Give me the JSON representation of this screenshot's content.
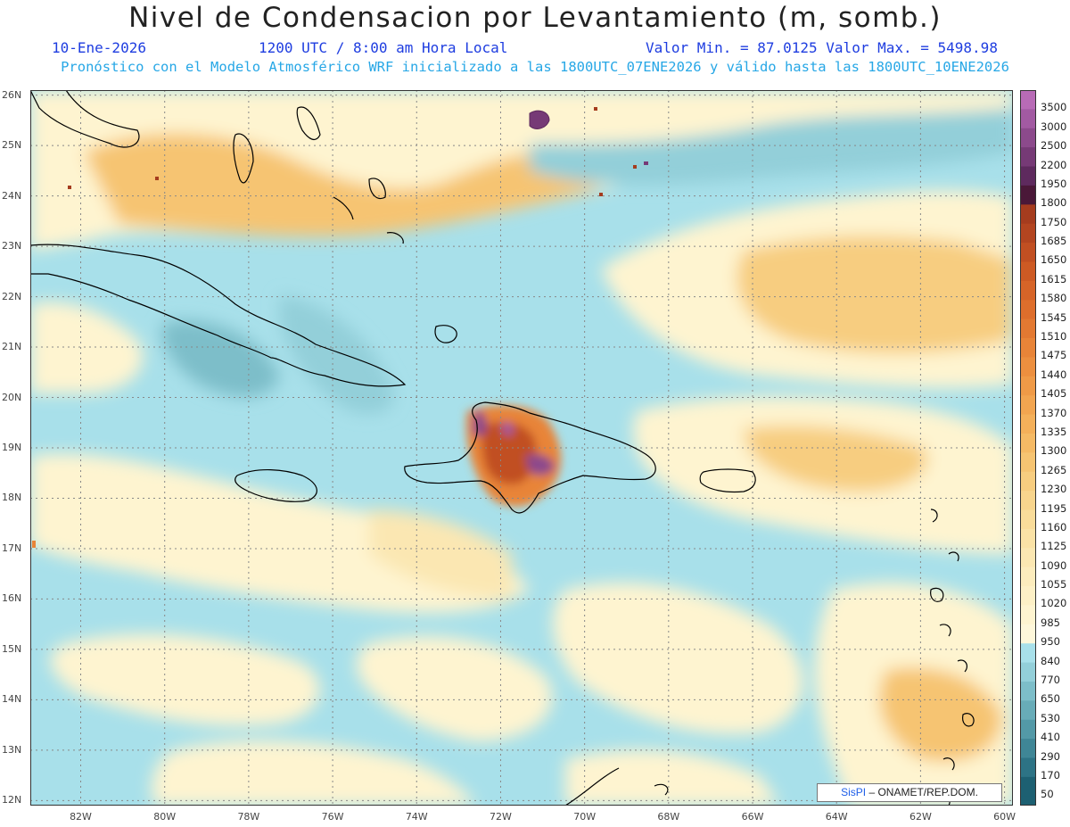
{
  "header": {
    "title": "Nivel de Condensacion por Levantamiento (m, somb.)",
    "date": "10-Ene-2026",
    "time": "1200 UTC / 8:00 am Hora Local",
    "minmax": "Valor Min. = 87.0125  Valor Max. = 5498.98",
    "forecast_note": "Pronóstico con el Modelo Atmosférico WRF inicializado a las 1800UTC_07ENE2026 y válido hasta las  1800UTC_10ENE2026"
  },
  "map": {
    "lat_labels": [
      "26N",
      "25N",
      "24N",
      "23N",
      "22N",
      "21N",
      "20N",
      "19N",
      "18N",
      "17N",
      "16N",
      "15N",
      "14N",
      "13N",
      "12N"
    ],
    "lon_labels": [
      "82W",
      "80W",
      "78W",
      "76W",
      "74W",
      "72W",
      "70W",
      "68W",
      "66W",
      "64W",
      "62W",
      "60W"
    ],
    "lat_values": [
      26,
      25,
      24,
      23,
      22,
      21,
      20,
      19,
      18,
      17,
      16,
      15,
      14,
      13,
      12
    ],
    "lon_values": [
      -82,
      -80,
      -78,
      -76,
      -74,
      -72,
      -70,
      -68,
      -66,
      -64,
      -62,
      -60
    ],
    "lon_range": [
      -83.2,
      -59.8
    ],
    "lat_range": [
      11.9,
      26.1
    ],
    "coastline_color": "#000000",
    "grid_color": "#888888"
  },
  "colorbar": {
    "levels": [
      "3500",
      "3000",
      "2500",
      "2200",
      "1950",
      "1800",
      "1750",
      "1685",
      "1650",
      "1615",
      "1580",
      "1545",
      "1510",
      "1475",
      "1440",
      "1405",
      "1370",
      "1335",
      "1300",
      "1265",
      "1230",
      "1195",
      "1160",
      "1125",
      "1090",
      "1055",
      "1020",
      "985",
      "950",
      "840",
      "770",
      "650",
      "530",
      "410",
      "290",
      "170",
      "50"
    ],
    "colors": [
      "#b86bb6",
      "#a25aa2",
      "#8c4a8c",
      "#763a76",
      "#5e2a5e",
      "#4a1838",
      "#a53c1e",
      "#b34520",
      "#c14f22",
      "#cd5a24",
      "#d66428",
      "#de6e2c",
      "#e37932",
      "#e88438",
      "#ec8f3f",
      "#ef9a47",
      "#f2a550",
      "#f4b05a",
      "#f5ba65",
      "#f6c472",
      "#f7cd80",
      "#f8d58d",
      "#f9dc9a",
      "#fae2a6",
      "#fbe7b2",
      "#fcecbd",
      "#fdf0c6",
      "#fef4d0",
      "#fef7da",
      "#a8e0ea",
      "#93cfd9",
      "#7dbec9",
      "#68acb8",
      "#5399a7",
      "#3f8696",
      "#2d7385",
      "#1d6072"
    ]
  },
  "credit": {
    "logo": "SisPI",
    "text": "ONAMET/REP.DOM."
  }
}
